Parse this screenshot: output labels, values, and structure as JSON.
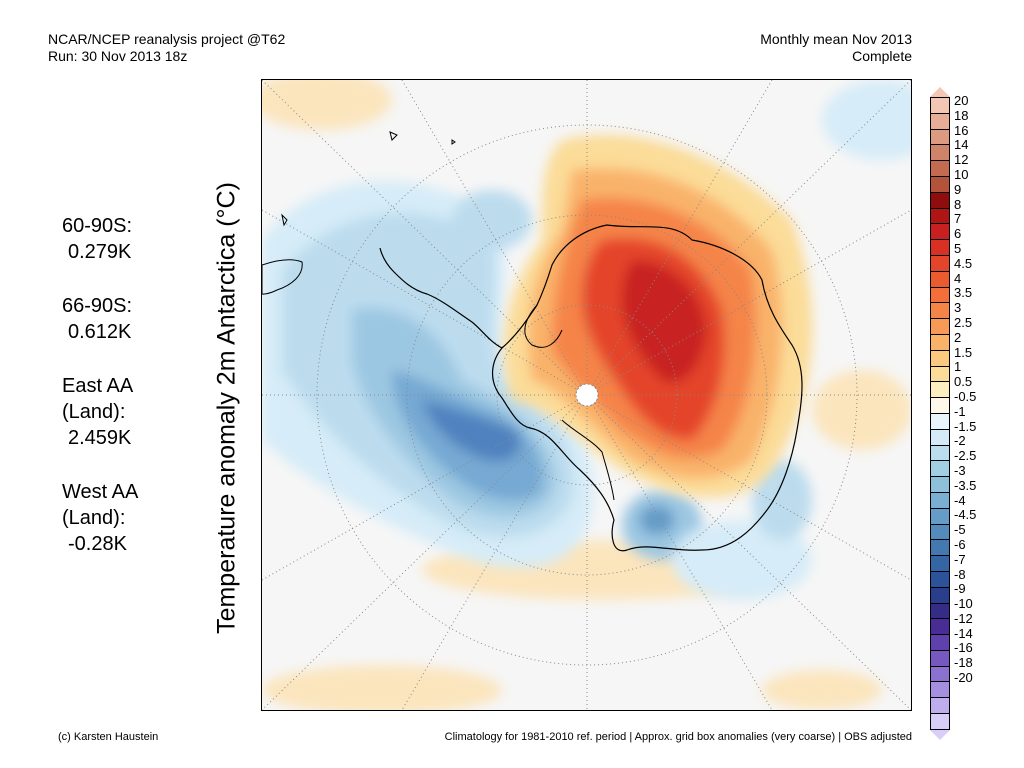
{
  "header": {
    "left_line1": "NCAR/NCEP reanalysis project @T62",
    "left_line2": "Run: 30 Nov 2013 18z",
    "right_line1": "Monthly mean Nov 2013",
    "right_line2": "Complete"
  },
  "ylabel": "Temperature anomaly 2m Antarctica (°C)",
  "stats": [
    {
      "label": "60-90S:",
      "value": "0.279K"
    },
    {
      "label": "66-90S:",
      "value": "0.612K"
    },
    {
      "label": "East AA\n(Land):",
      "value": "2.459K"
    },
    {
      "label": "West AA\n(Land):",
      "value": "-0.28K"
    }
  ],
  "colorbar": {
    "labels": [
      "20",
      "18",
      "16",
      "14",
      "12",
      "10",
      "9",
      "8",
      "7",
      "6",
      "5",
      "4.5",
      "4",
      "3.5",
      "3",
      "2.5",
      "2",
      "1.5",
      "1",
      "0.5",
      "-0.5",
      "-1",
      "-1.5",
      "-2",
      "-2.5",
      "-3",
      "-3.5",
      "-4",
      "-4.5",
      "-5",
      "-6",
      "-7",
      "-8",
      "-9",
      "-10",
      "-12",
      "-14",
      "-16",
      "-18",
      "-20"
    ],
    "colors": [
      "#f4c7b4",
      "#e8ad96",
      "#dc9a80",
      "#cf8368",
      "#c26b50",
      "#b35339",
      "#8f0d0d",
      "#b01515",
      "#c82020",
      "#d83025",
      "#e4452a",
      "#ec5a30",
      "#f26e3a",
      "#f58448",
      "#f79a58",
      "#f9b26a",
      "#fbc880",
      "#fbdc98",
      "#fdeec0",
      "#fdf8ea",
      "#eaf4fb",
      "#d4ebf7",
      "#bbdeef",
      "#a3cfe5",
      "#8ebfdb",
      "#7aaed2",
      "#669cc8",
      "#548bbd",
      "#4378b1",
      "#3466a5",
      "#2c5299",
      "#293e8d",
      "#352c88",
      "#4a2c95",
      "#6040ad",
      "#7658c0",
      "#8c72d0",
      "#a68ee0",
      "#bfaeee",
      "#d8cef8"
    ]
  },
  "footer": {
    "left": "(c) Karsten Haustein",
    "right": "Climatology for 1981-2010 ref. period | Approx. grid box anomalies (very coarse) | OBS adjusted"
  }
}
